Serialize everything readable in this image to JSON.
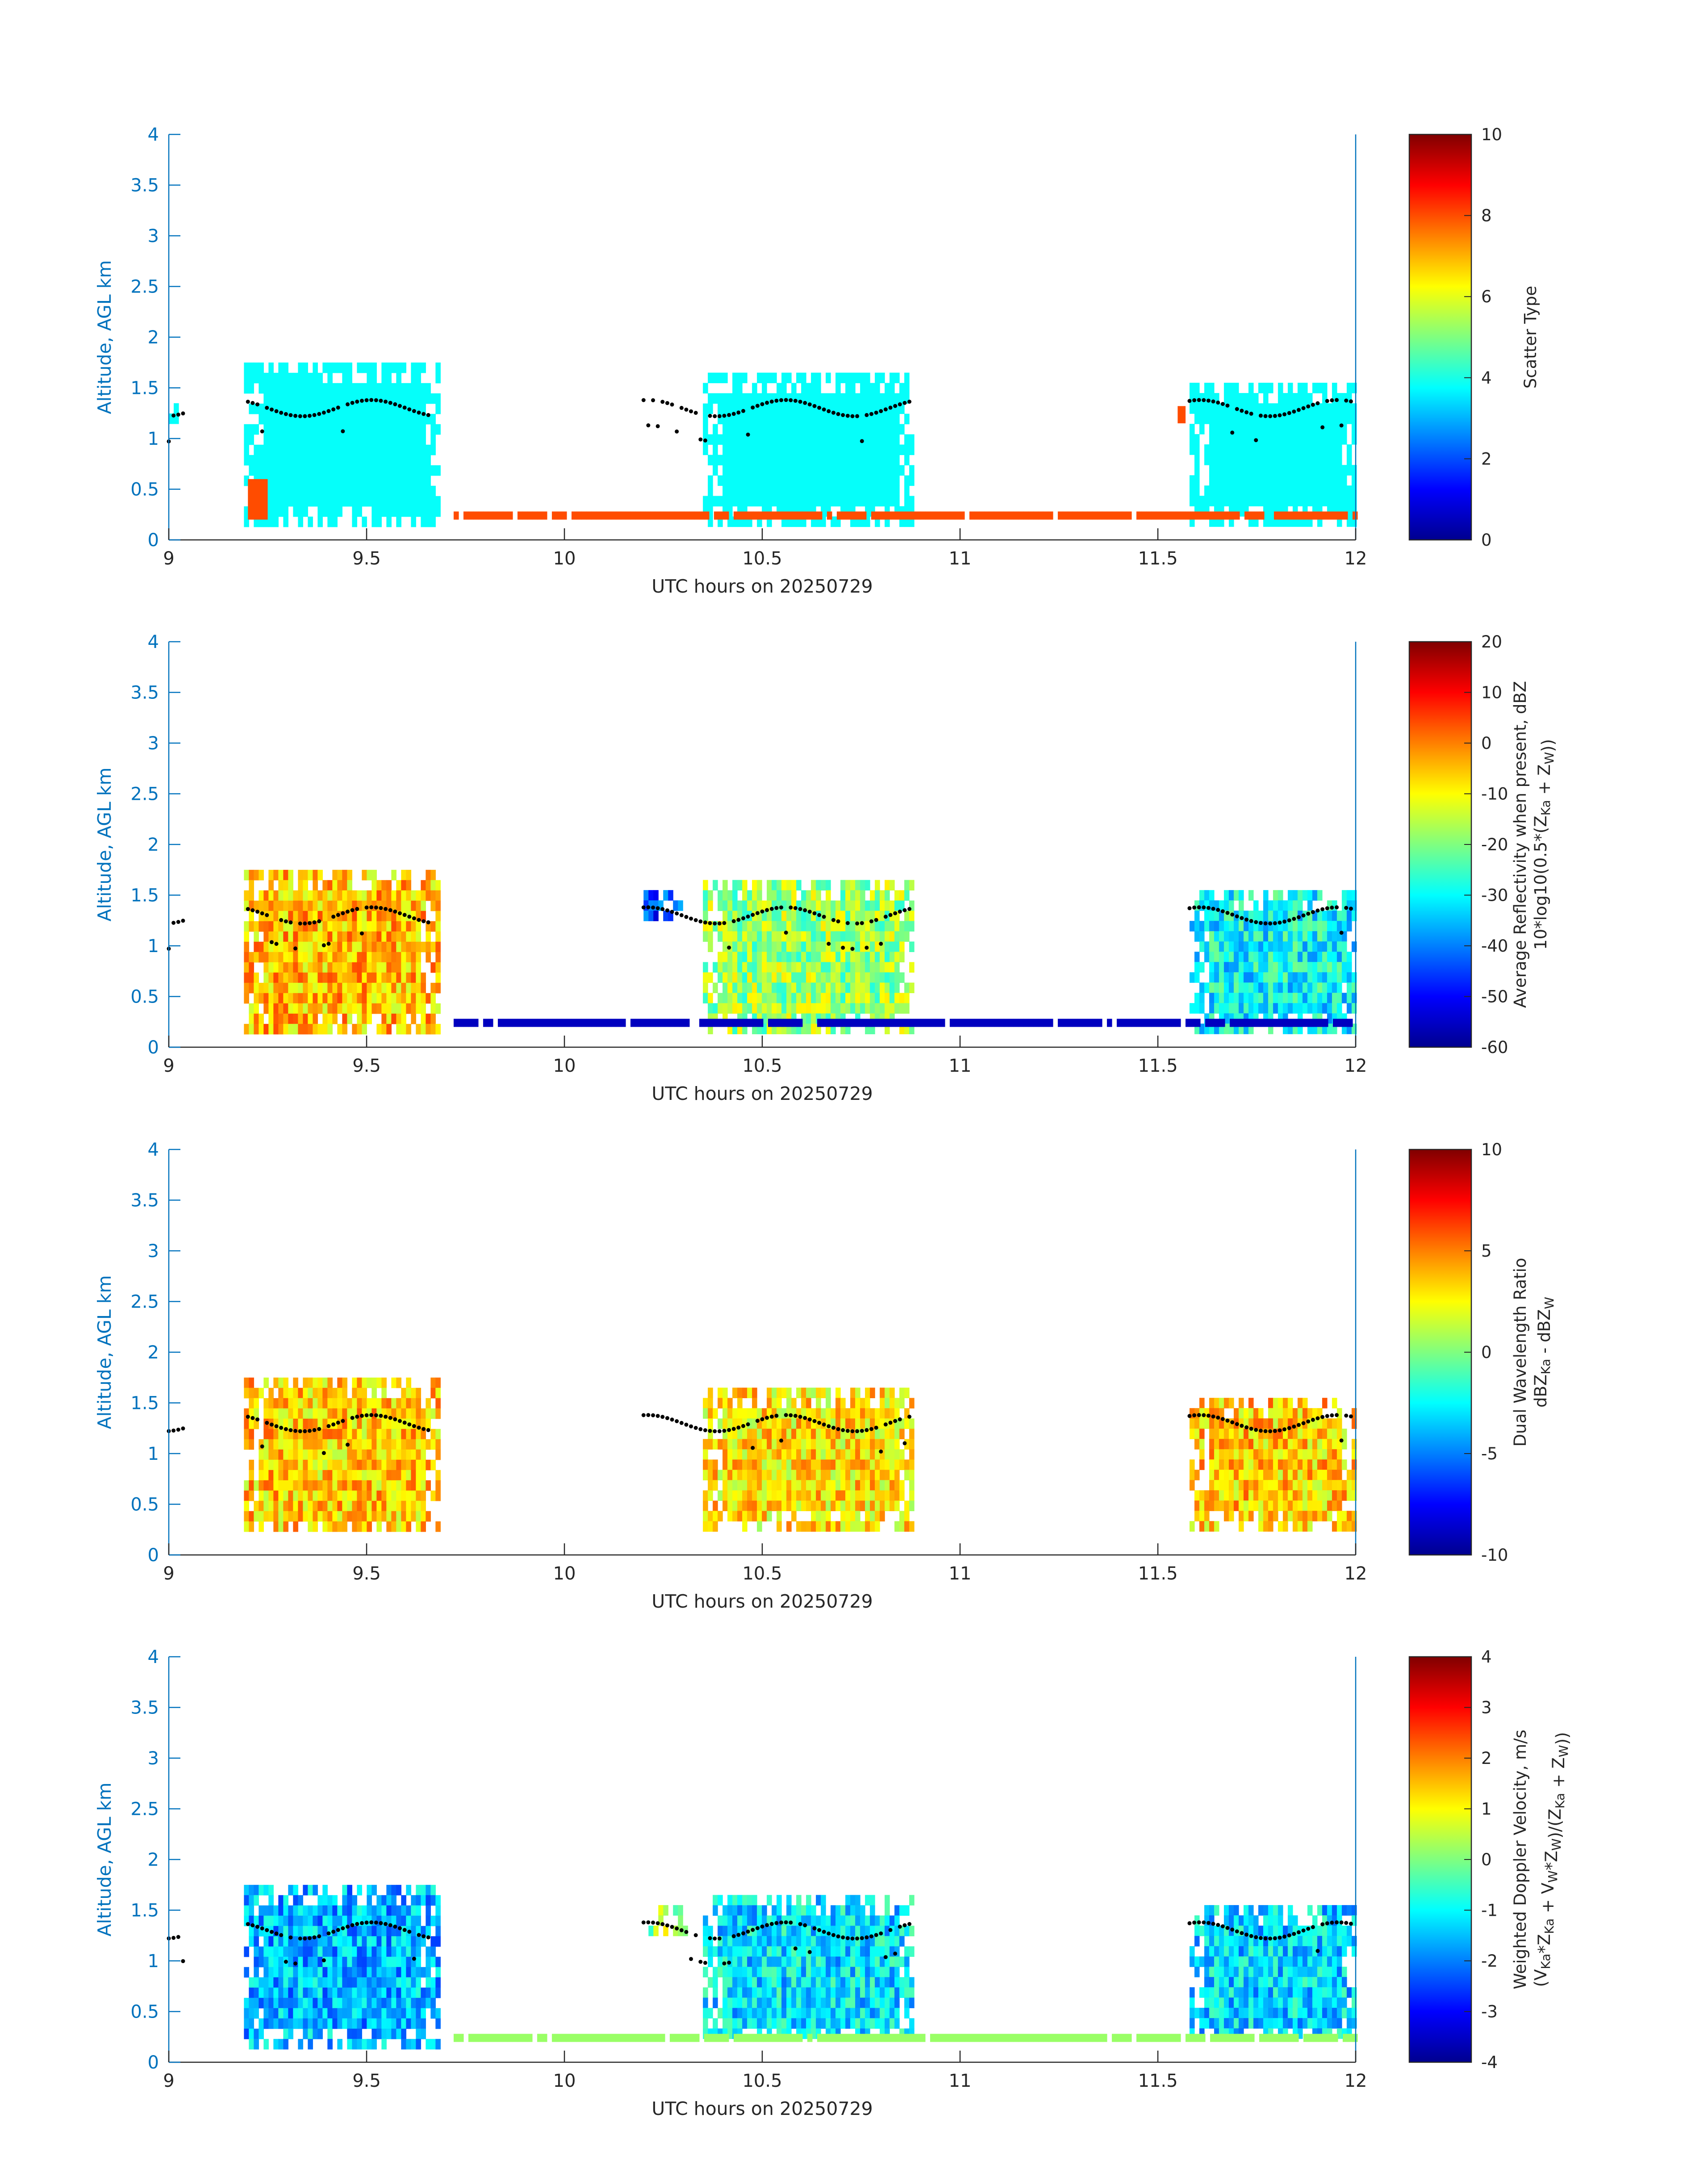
{
  "chart_data": [
    {
      "type": "heatmap",
      "panel": "scatter-type",
      "xlabel": "UTC hours on 20250729",
      "ylabel": "Altitude, AGL km",
      "xlim": [
        9,
        12
      ],
      "ylim": [
        0,
        4
      ],
      "xticks": [
        "9",
        "9.5",
        "10",
        "10.5",
        "11",
        "11.5",
        "12"
      ],
      "yticks": [
        "0",
        "0.5",
        "1",
        "1.5",
        "2",
        "2.5",
        "3",
        "3.5",
        "4"
      ],
      "colorbar": {
        "label_lines": [
          "Scatter Type"
        ],
        "range": [
          0,
          10
        ],
        "ticks": [
          "0",
          "2",
          "4",
          "6",
          "8",
          "10"
        ],
        "colormap": "jet"
      },
      "cloud_blocks": [
        {
          "x0": 9.19,
          "x1": 9.68,
          "y0": 0.2,
          "y1": 1.75,
          "value": 3.8
        },
        {
          "x0": 10.35,
          "x1": 10.88,
          "y0": 0.2,
          "y1": 1.65,
          "value": 3.8
        },
        {
          "x0": 11.58,
          "x1": 12.0,
          "y0": 0.2,
          "y1": 1.55,
          "value": 3.8
        },
        {
          "x0": 9.0,
          "x1": 9.02,
          "y0": 1.2,
          "y1": 1.45,
          "value": 3.8
        }
      ],
      "surface_layer": {
        "x0": 9.72,
        "x1": 12.0,
        "y0": 0.2,
        "y1": 0.28,
        "value": 8.0
      },
      "other_marks": [
        {
          "x0": 9.2,
          "x1": 9.25,
          "y0": 0.2,
          "y1": 0.6,
          "value": 8.0
        },
        {
          "x0": 11.55,
          "x1": 11.57,
          "y0": 1.15,
          "y1": 1.32,
          "value": 8.0
        }
      ],
      "dots": {
        "color": "#000000"
      }
    },
    {
      "type": "heatmap",
      "panel": "reflectivity",
      "xlabel": "UTC hours on 20250729",
      "ylabel": "Altitude, AGL km",
      "xlim": [
        9,
        12
      ],
      "ylim": [
        0,
        4
      ],
      "xticks": [
        "9",
        "9.5",
        "10",
        "10.5",
        "11",
        "11.5",
        "12"
      ],
      "yticks": [
        "0",
        "0.5",
        "1",
        "1.5",
        "2",
        "2.5",
        "3",
        "3.5",
        "4"
      ],
      "colorbar": {
        "label_lines": [
          "Average Reflectivity when present, dBZ",
          "10*log10(0.5*(Z_Ka + Z_W))"
        ],
        "range": [
          -60,
          20
        ],
        "ticks": [
          "-60",
          "-50",
          "-40",
          "-30",
          "-20",
          "-10",
          "0",
          "10",
          "20"
        ],
        "colormap": "jet"
      },
      "cloud_blocks": [
        {
          "x0": 9.19,
          "x1": 9.68,
          "y0": 0.2,
          "y1": 1.75,
          "value": -5
        },
        {
          "x0": 10.35,
          "x1": 10.88,
          "y0": 0.2,
          "y1": 1.65,
          "value": -18
        },
        {
          "x0": 11.58,
          "x1": 12.0,
          "y0": 0.2,
          "y1": 1.55,
          "value": -30
        },
        {
          "x0": 10.2,
          "x1": 10.3,
          "y0": 1.3,
          "y1": 1.55,
          "value": -45
        }
      ],
      "surface_layer": {
        "x0": 9.72,
        "x1": 12.0,
        "y0": 0.2,
        "y1": 0.28,
        "value": -55
      },
      "other_marks": [],
      "dots": {
        "color": "#000000"
      }
    },
    {
      "type": "heatmap",
      "panel": "dual-wavelength-ratio",
      "xlabel": "UTC hours on 20250729",
      "ylabel": "Altitude, AGL km",
      "xlim": [
        9,
        12
      ],
      "ylim": [
        0,
        4
      ],
      "xticks": [
        "9",
        "9.5",
        "10",
        "10.5",
        "11",
        "11.5",
        "12"
      ],
      "yticks": [
        "0",
        "0.5",
        "1",
        "1.5",
        "2",
        "2.5",
        "3",
        "3.5",
        "4"
      ],
      "colorbar": {
        "label_lines": [
          "Dual Wavelength Ratio",
          "dBZ_Ka - dBZ_W"
        ],
        "range": [
          -10,
          10
        ],
        "ticks": [
          "-10",
          "-5",
          "0",
          "5",
          "10"
        ],
        "colormap": "jet"
      },
      "cloud_blocks": [
        {
          "x0": 9.19,
          "x1": 9.68,
          "y0": 0.25,
          "y1": 1.75,
          "value": 3.5
        },
        {
          "x0": 10.35,
          "x1": 10.88,
          "y0": 0.3,
          "y1": 1.65,
          "value": 3.0
        },
        {
          "x0": 11.58,
          "x1": 12.0,
          "y0": 0.3,
          "y1": 1.55,
          "value": 3.5
        }
      ],
      "surface_layer": null,
      "other_marks": [],
      "dots": {
        "color": "#000000"
      }
    },
    {
      "type": "heatmap",
      "panel": "doppler-velocity",
      "xlabel": "UTC hours on 20250729",
      "ylabel": "Altitude, AGL km",
      "xlim": [
        9,
        12
      ],
      "ylim": [
        0,
        4
      ],
      "xticks": [
        "9",
        "9.5",
        "10",
        "10.5",
        "11",
        "11.5",
        "12"
      ],
      "yticks": [
        "0",
        "0.5",
        "1",
        "1.5",
        "2",
        "2.5",
        "3",
        "3.5",
        "4"
      ],
      "colorbar": {
        "label_lines": [
          "Weighted Doppler Velocity, m/s",
          "(V_Ka*Z_Ka + V_W*Z_W)/(Z_Ka + Z_W))"
        ],
        "range": [
          -4,
          4
        ],
        "ticks": [
          "-4",
          "-3",
          "-2",
          "-1",
          "0",
          "1",
          "2",
          "3",
          "4"
        ],
        "colormap": "jet"
      },
      "cloud_blocks": [
        {
          "x0": 9.19,
          "x1": 9.68,
          "y0": 0.2,
          "y1": 1.75,
          "value": -1.6
        },
        {
          "x0": 10.35,
          "x1": 10.88,
          "y0": 0.25,
          "y1": 1.65,
          "value": -1.2
        },
        {
          "x0": 11.58,
          "x1": 12.0,
          "y0": 0.25,
          "y1": 1.55,
          "value": -1.3
        },
        {
          "x0": 10.2,
          "x1": 10.3,
          "y0": 1.3,
          "y1": 1.55,
          "value": 0.2
        }
      ],
      "surface_layer": {
        "x0": 9.72,
        "x1": 12.0,
        "y0": 0.2,
        "y1": 0.28,
        "value": 0.2
      },
      "other_marks": [],
      "dots": {
        "color": "#000000"
      }
    }
  ]
}
